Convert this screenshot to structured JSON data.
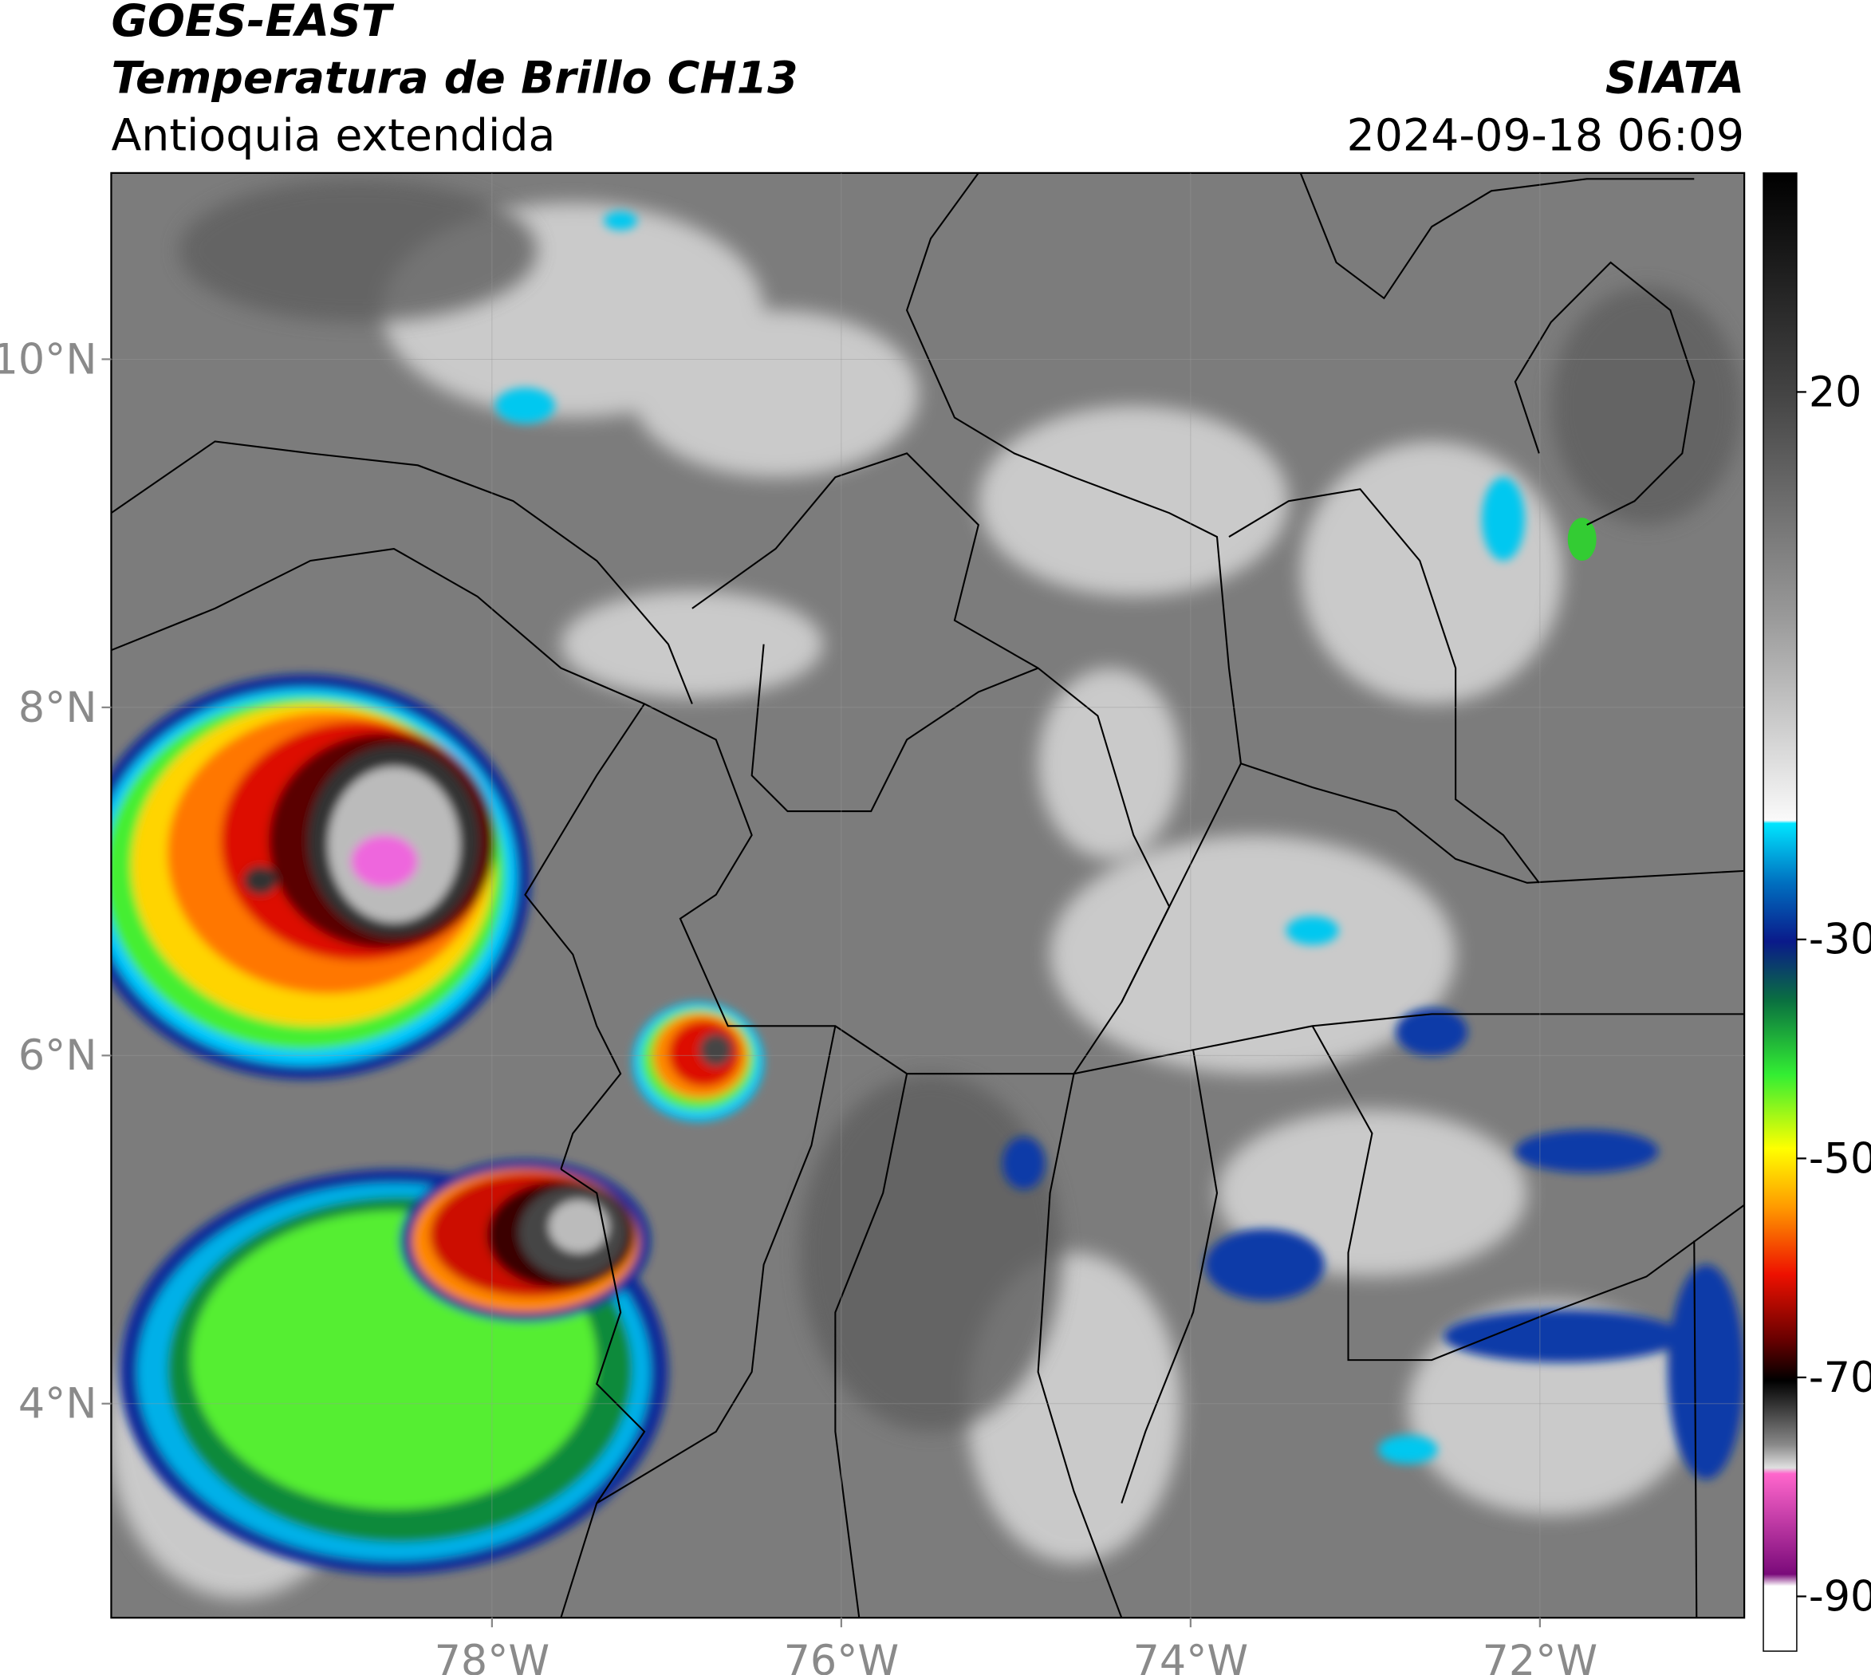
{
  "header": {
    "title": "GOES-EAST",
    "subtitle": "Temperatura de Brillo CH13",
    "region": "Antioquia extendida",
    "source": "SIATA",
    "datetime": "2024-09-18 06:09"
  },
  "map": {
    "xlim": [
      -80.18,
      -70.83
    ],
    "ylim": [
      2.77,
      11.07
    ],
    "xticks": [
      {
        "value": -78,
        "label": "78°W"
      },
      {
        "value": -76,
        "label": "76°W"
      },
      {
        "value": -74,
        "label": "74°W"
      },
      {
        "value": -72,
        "label": "72°W"
      }
    ],
    "yticks": [
      {
        "value": 4,
        "label": "4°N"
      },
      {
        "value": 6,
        "label": "6°N"
      },
      {
        "value": 8,
        "label": "8°N"
      },
      {
        "value": 10,
        "label": "10°N"
      }
    ]
  },
  "colorbar": {
    "lim": [
      -95,
      40
    ],
    "ticks": [
      20,
      -30,
      -50,
      -70,
      -90
    ]
  }
}
